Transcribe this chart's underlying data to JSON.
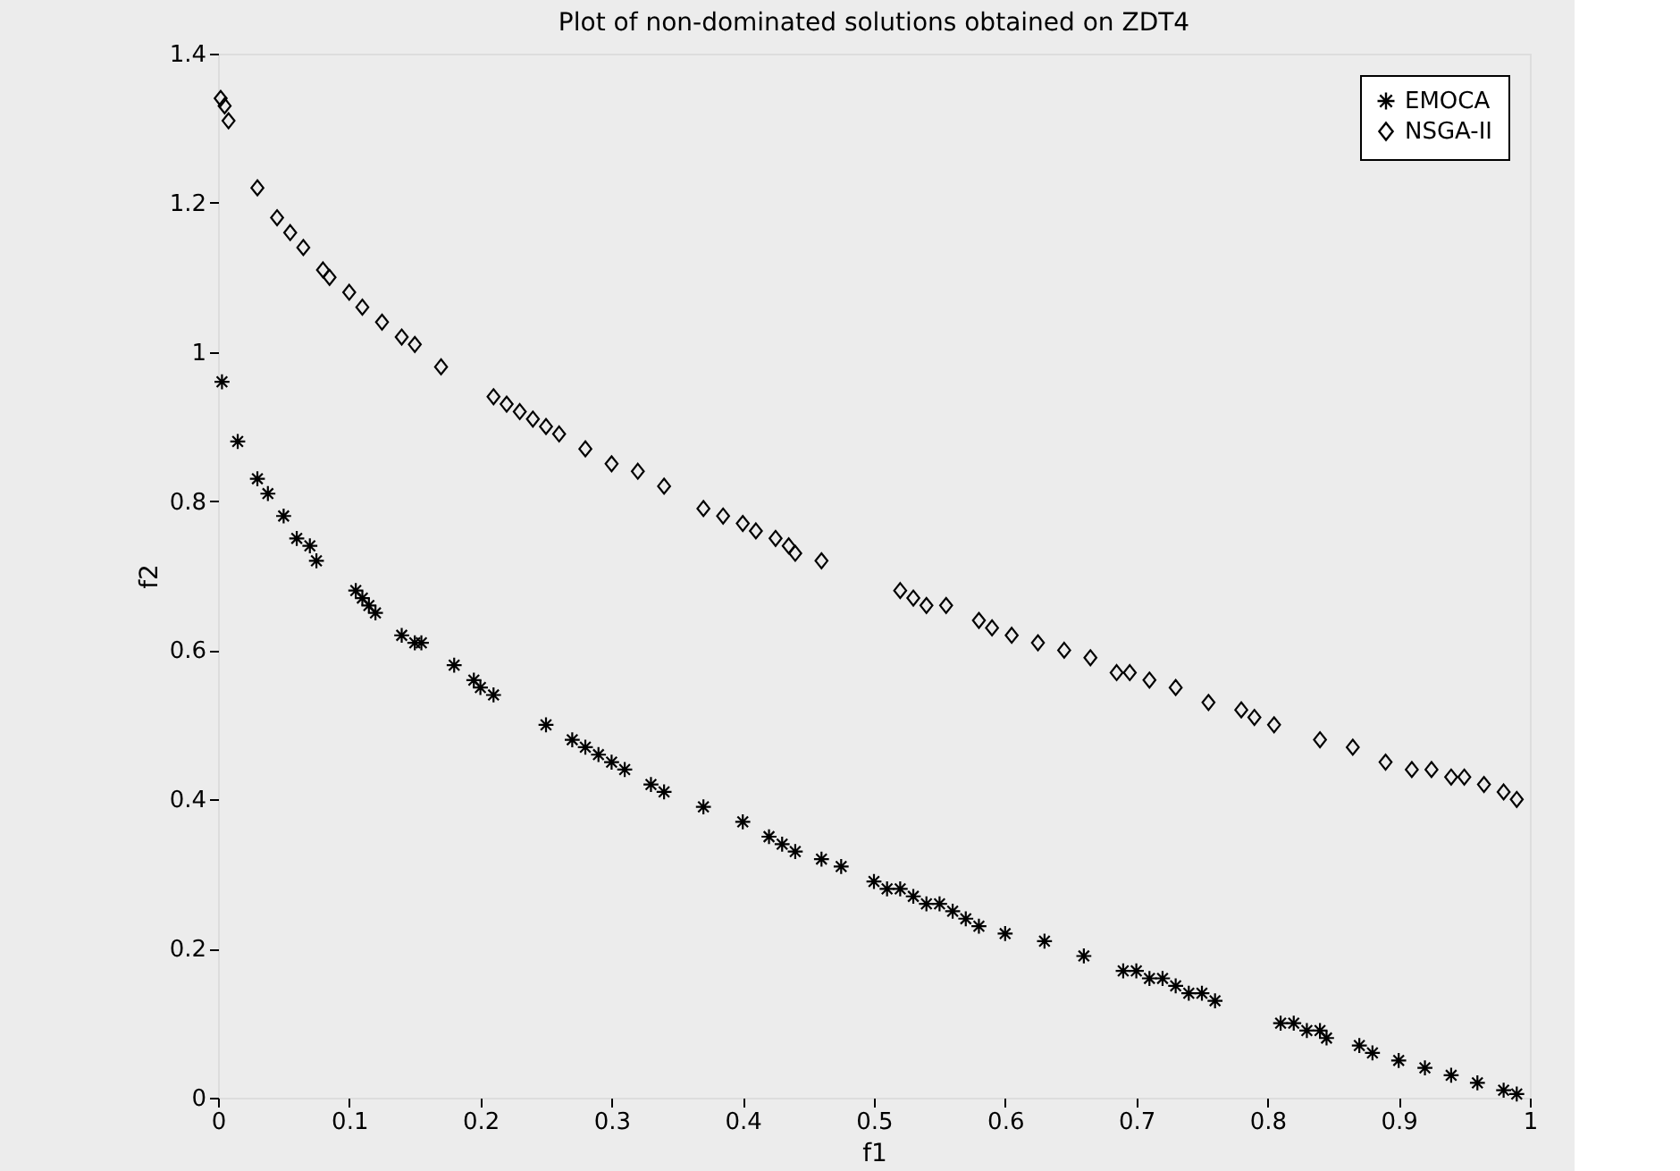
{
  "chart_data": {
    "type": "scatter",
    "title": "Plot of non-dominated solutions obtained on ZDT4",
    "xlabel": "f1",
    "ylabel": "f2",
    "xlim": [
      0,
      1
    ],
    "xticks": [
      0,
      0.1,
      0.2,
      0.3,
      0.4,
      0.5,
      0.6,
      0.7,
      0.8,
      0.9,
      1
    ],
    "ylim": [
      0,
      1.4
    ],
    "yticks": [
      0,
      0.2,
      0.4,
      0.6,
      0.8,
      1,
      1.2,
      1.4
    ],
    "grid": false,
    "legend": "top right",
    "series": [
      {
        "name": "EMOCA",
        "color": "#000000",
        "marker": "cross",
        "x": [
          0.003,
          0.015,
          0.03,
          0.038,
          0.05,
          0.06,
          0.07,
          0.075,
          0.105,
          0.11,
          0.115,
          0.12,
          0.14,
          0.15,
          0.155,
          0.18,
          0.195,
          0.2,
          0.21,
          0.25,
          0.27,
          0.28,
          0.29,
          0.3,
          0.31,
          0.33,
          0.34,
          0.37,
          0.4,
          0.42,
          0.43,
          0.44,
          0.46,
          0.475,
          0.5,
          0.51,
          0.52,
          0.53,
          0.54,
          0.55,
          0.56,
          0.57,
          0.58,
          0.6,
          0.63,
          0.66,
          0.69,
          0.7,
          0.71,
          0.72,
          0.73,
          0.74,
          0.75,
          0.76,
          0.81,
          0.82,
          0.83,
          0.84,
          0.845,
          0.87,
          0.88,
          0.9,
          0.92,
          0.94,
          0.96,
          0.98,
          0.99
        ],
        "values": [
          0.96,
          0.88,
          0.83,
          0.81,
          0.78,
          0.75,
          0.74,
          0.72,
          0.68,
          0.67,
          0.66,
          0.65,
          0.62,
          0.61,
          0.61,
          0.58,
          0.56,
          0.55,
          0.54,
          0.5,
          0.48,
          0.47,
          0.46,
          0.45,
          0.44,
          0.42,
          0.41,
          0.39,
          0.37,
          0.35,
          0.34,
          0.33,
          0.32,
          0.31,
          0.29,
          0.28,
          0.28,
          0.27,
          0.26,
          0.26,
          0.25,
          0.24,
          0.23,
          0.22,
          0.21,
          0.19,
          0.17,
          0.17,
          0.16,
          0.16,
          0.15,
          0.14,
          0.14,
          0.13,
          0.1,
          0.1,
          0.09,
          0.09,
          0.08,
          0.07,
          0.06,
          0.05,
          0.04,
          0.03,
          0.02,
          0.01,
          0.005
        ]
      },
      {
        "name": "NSGA-II",
        "color": "#000000",
        "marker": "diamond",
        "x": [
          0.002,
          0.005,
          0.008,
          0.03,
          0.045,
          0.055,
          0.065,
          0.08,
          0.085,
          0.1,
          0.11,
          0.125,
          0.14,
          0.15,
          0.17,
          0.21,
          0.22,
          0.23,
          0.24,
          0.25,
          0.26,
          0.28,
          0.3,
          0.32,
          0.34,
          0.37,
          0.385,
          0.4,
          0.41,
          0.425,
          0.435,
          0.44,
          0.46,
          0.52,
          0.53,
          0.54,
          0.555,
          0.58,
          0.59,
          0.605,
          0.625,
          0.645,
          0.665,
          0.685,
          0.695,
          0.71,
          0.73,
          0.755,
          0.78,
          0.79,
          0.805,
          0.84,
          0.865,
          0.89,
          0.91,
          0.925,
          0.94,
          0.95,
          0.965,
          0.98,
          0.99
        ],
        "values": [
          1.34,
          1.33,
          1.31,
          1.22,
          1.18,
          1.16,
          1.14,
          1.11,
          1.1,
          1.08,
          1.06,
          1.04,
          1.02,
          1.01,
          0.98,
          0.94,
          0.93,
          0.92,
          0.91,
          0.9,
          0.89,
          0.87,
          0.85,
          0.84,
          0.82,
          0.79,
          0.78,
          0.77,
          0.76,
          0.75,
          0.74,
          0.73,
          0.72,
          0.68,
          0.67,
          0.66,
          0.66,
          0.64,
          0.63,
          0.62,
          0.61,
          0.6,
          0.59,
          0.57,
          0.57,
          0.56,
          0.55,
          0.53,
          0.52,
          0.51,
          0.5,
          0.48,
          0.47,
          0.45,
          0.44,
          0.44,
          0.43,
          0.43,
          0.42,
          0.41,
          0.4
        ]
      }
    ]
  }
}
